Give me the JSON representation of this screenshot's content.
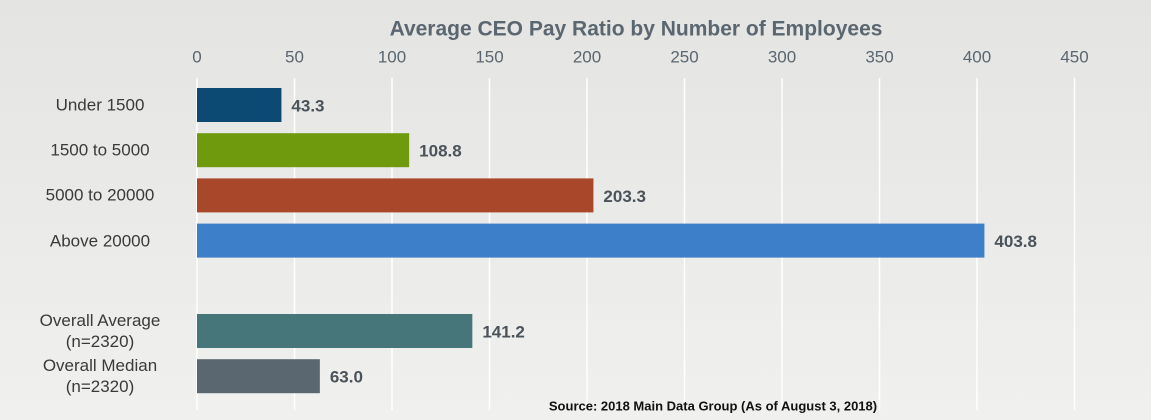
{
  "chart_data": {
    "type": "barh",
    "title": "Average CEO Pay Ratio by Number of Employees",
    "categories": [
      "Under 1500",
      "1500 to 5000",
      "5000 to 20000",
      "Above 20000",
      null,
      "Overall Average (n=2320)",
      "Overall Median (n=2320)"
    ],
    "values": [
      43.3,
      108.8,
      203.3,
      403.8,
      null,
      141.2,
      63
    ],
    "value_labels": [
      "43.3",
      "108.8",
      "203.3",
      "403.8",
      null,
      "141.2",
      "63.0"
    ],
    "colors": [
      "#0d4a73",
      "#6f9a0e",
      "#a9472a",
      "#3d7fc8",
      null,
      "#46767a",
      "#5a6670"
    ],
    "xlim": [
      0,
      450
    ],
    "xticks": [
      0,
      50,
      100,
      150,
      200,
      250,
      300,
      350,
      400,
      450
    ],
    "grid": true,
    "source": "Source: 2018 Main Data Group (As of August 3, 2018)"
  }
}
